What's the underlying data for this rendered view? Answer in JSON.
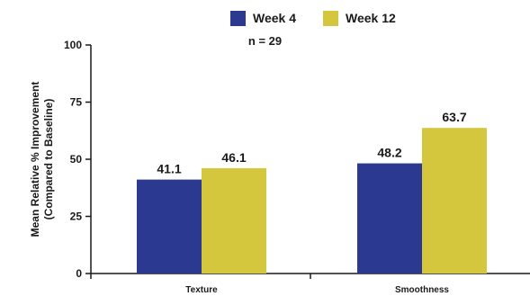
{
  "chart_data": {
    "type": "bar",
    "title": "",
    "annotation": "n = 29",
    "xlabel": "",
    "ylabel": [
      "Mean Relative % Improvement",
      "(Compared to Baseline)"
    ],
    "categories": [
      "Texture",
      "Smoothness"
    ],
    "series": [
      {
        "name": "Week 4",
        "color": "#2b3990",
        "values": [
          41.1,
          48.2
        ],
        "labels": [
          "41.1",
          "48.2"
        ]
      },
      {
        "name": "Week 12",
        "color": "#d4c63d",
        "values": [
          46.1,
          63.7
        ],
        "labels": [
          "46.1",
          "63.7"
        ]
      }
    ],
    "ylim": [
      0,
      100
    ],
    "yticks": [
      0,
      25,
      50,
      75,
      100
    ],
    "ytick_labels": [
      "0",
      "25",
      "50",
      "75",
      "100"
    ],
    "grid": false,
    "legend_position": "top-center"
  }
}
